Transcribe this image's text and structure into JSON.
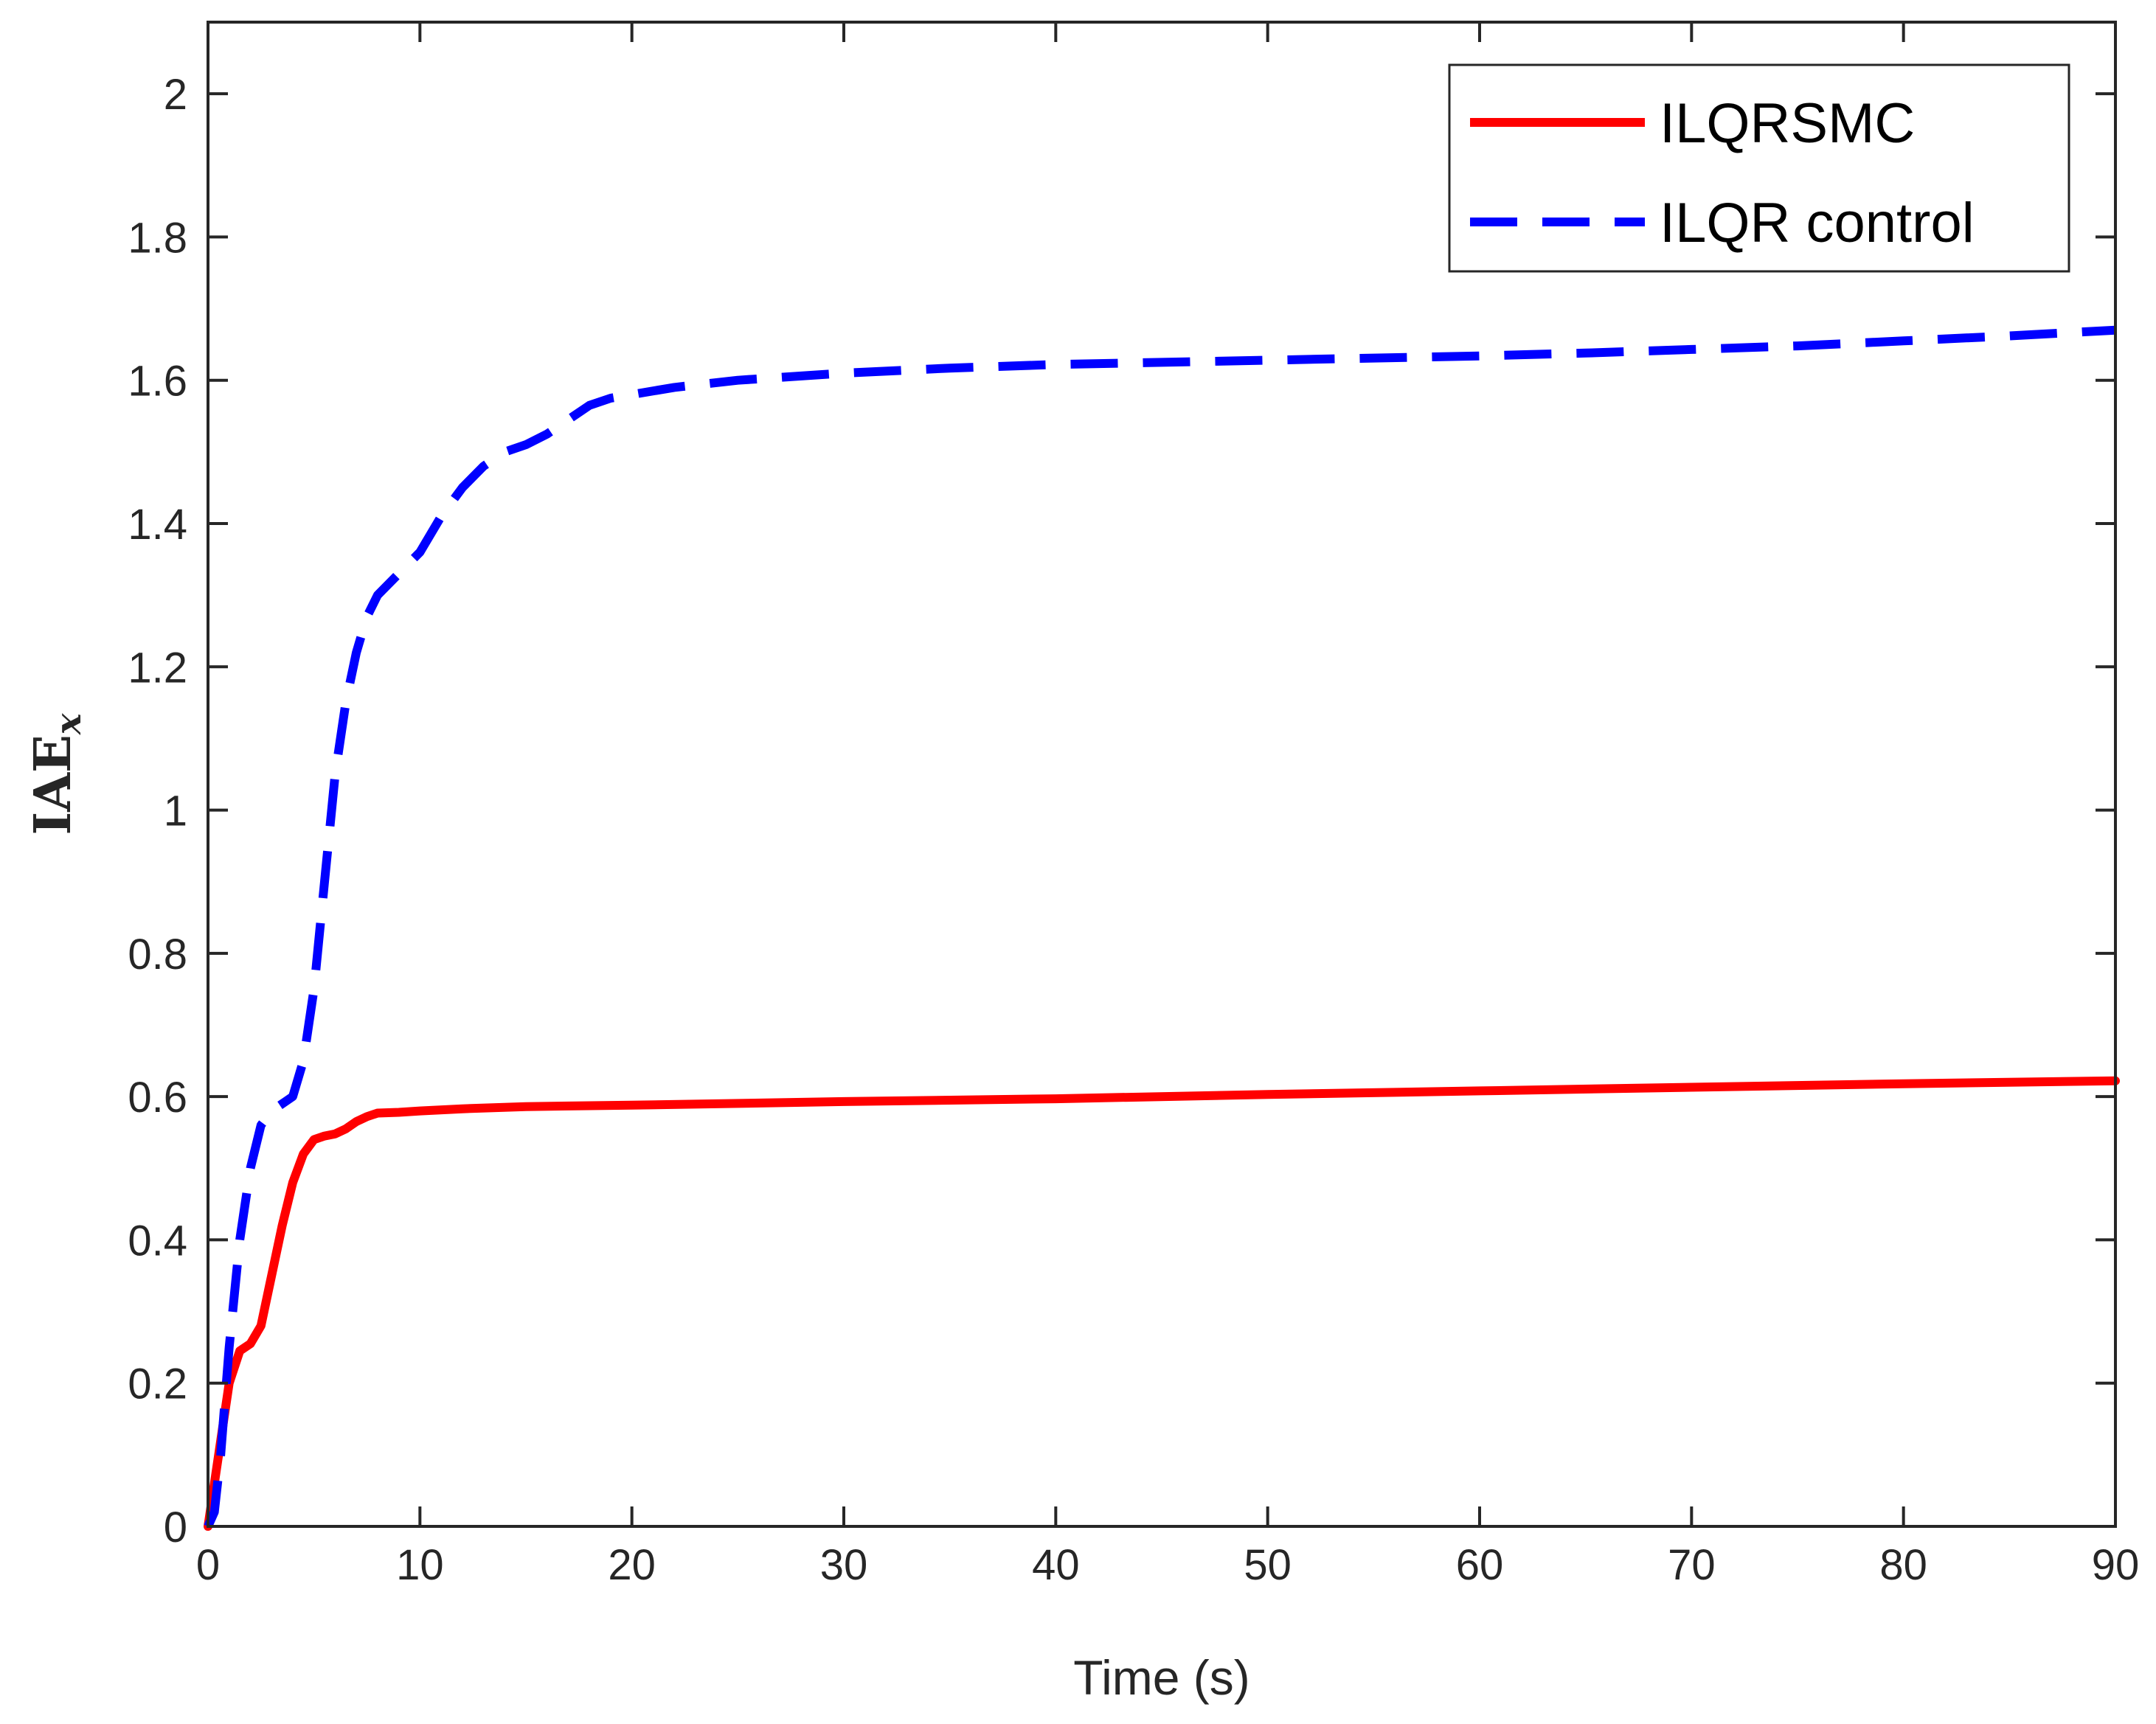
{
  "chart_data": {
    "type": "line",
    "xlabel": "Time (s)",
    "ylabel_main": "IAE",
    "ylabel_sub": "x",
    "xlim": [
      0,
      90
    ],
    "ylim": [
      0,
      2.1
    ],
    "xticks": [
      0,
      10,
      20,
      30,
      40,
      50,
      60,
      70,
      80,
      90
    ],
    "xtick_labels": [
      "0",
      "10",
      "20",
      "30",
      "40",
      "50",
      "60",
      "70",
      "80",
      "90"
    ],
    "yticks": [
      0,
      0.2,
      0.4,
      0.6,
      0.8,
      1.0,
      1.2,
      1.4,
      1.6,
      1.8,
      2.0
    ],
    "ytick_labels": [
      "0",
      "0.2",
      "0.4",
      "0.6",
      "0.8",
      "1",
      "1.2",
      "1.4",
      "1.6",
      "1.8",
      "2"
    ],
    "grid": false,
    "legend_position": "top-right",
    "series": [
      {
        "name": "ILQRSMC",
        "color": "#ff0000",
        "style": "solid",
        "x": [
          0,
          0.5,
          1.0,
          1.5,
          2.0,
          2.5,
          3.0,
          3.5,
          4.0,
          4.5,
          5.0,
          5.5,
          6.0,
          6.5,
          7.0,
          7.5,
          8.0,
          9.0,
          10.0,
          12.0,
          15.0,
          20.0,
          30.0,
          40.0,
          50.0,
          60.0,
          70.0,
          80.0,
          90.0
        ],
        "y": [
          0,
          0.1,
          0.2,
          0.245,
          0.255,
          0.28,
          0.35,
          0.42,
          0.48,
          0.52,
          0.54,
          0.545,
          0.548,
          0.555,
          0.565,
          0.572,
          0.577,
          0.578,
          0.58,
          0.583,
          0.586,
          0.588,
          0.593,
          0.597,
          0.603,
          0.608,
          0.613,
          0.618,
          0.622
        ]
      },
      {
        "name": "ILQR control",
        "color": "#0000ff",
        "style": "dashed",
        "x": [
          0,
          0.3,
          0.6,
          1.0,
          1.5,
          2.0,
          2.5,
          3.0,
          3.5,
          4.0,
          4.5,
          5.0,
          5.5,
          6.0,
          6.5,
          7.0,
          7.5,
          8.0,
          9.0,
          10.0,
          11.0,
          12.0,
          13.0,
          14.0,
          15.0,
          16.0,
          17.0,
          18.0,
          19.0,
          20.0,
          22.0,
          25.0,
          30.0,
          35.0,
          40.0,
          50.0,
          60.0,
          65.0,
          70.0,
          75.0,
          80.0,
          85.0,
          90.0
        ],
        "y": [
          0,
          0.02,
          0.1,
          0.25,
          0.4,
          0.5,
          0.56,
          0.58,
          0.59,
          0.6,
          0.65,
          0.75,
          0.9,
          1.05,
          1.15,
          1.22,
          1.27,
          1.3,
          1.33,
          1.36,
          1.41,
          1.45,
          1.48,
          1.5,
          1.51,
          1.525,
          1.545,
          1.565,
          1.575,
          1.58,
          1.59,
          1.6,
          1.61,
          1.617,
          1.622,
          1.628,
          1.634,
          1.638,
          1.643,
          1.648,
          1.655,
          1.662,
          1.67
        ]
      }
    ]
  }
}
